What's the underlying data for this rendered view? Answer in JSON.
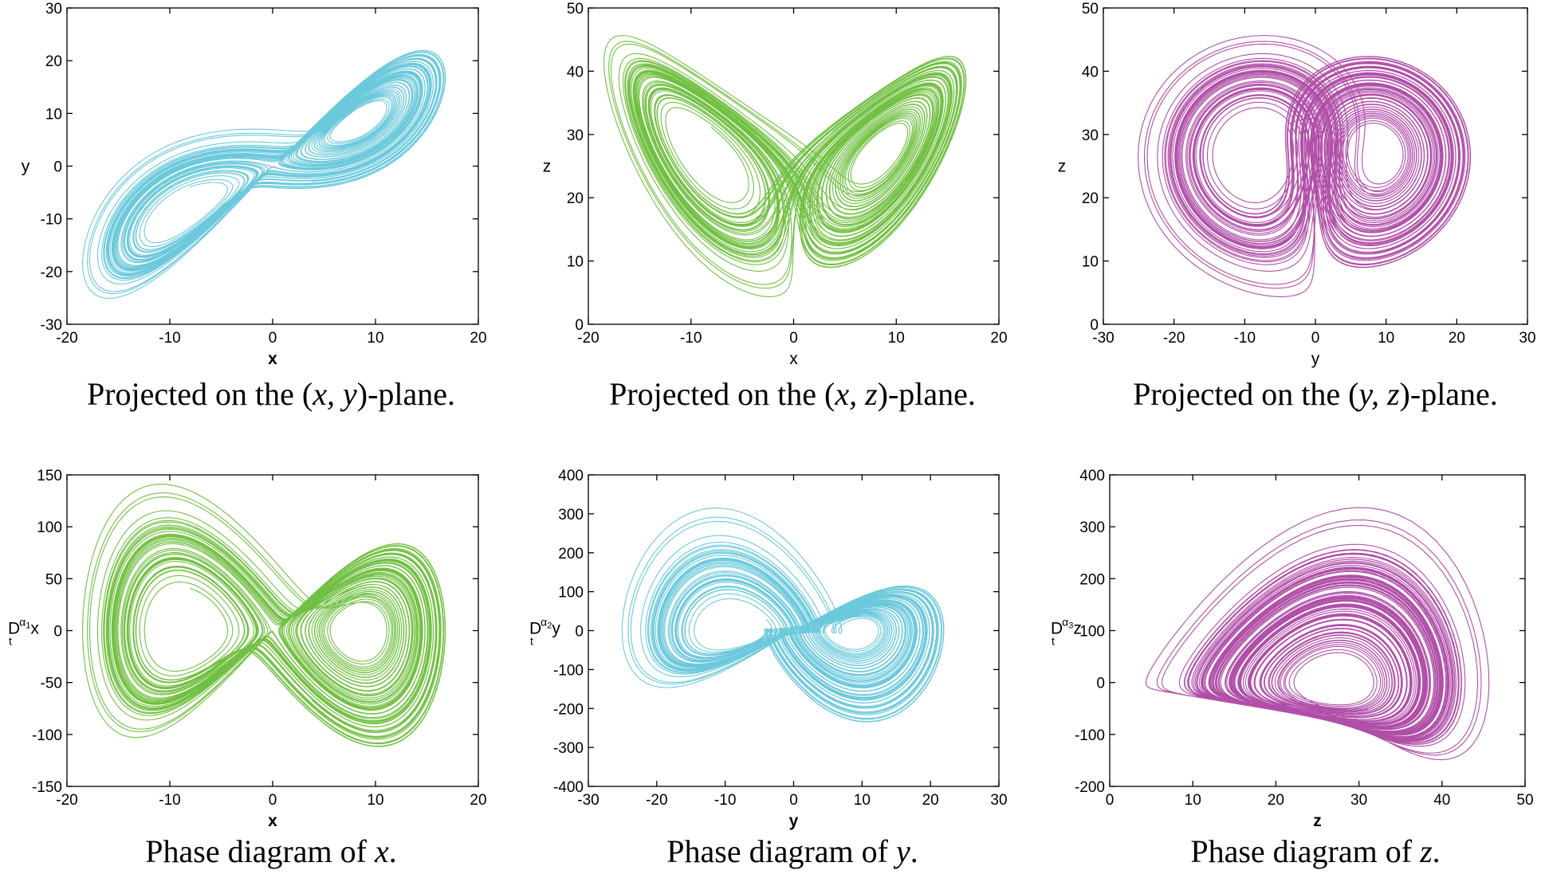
{
  "colors": {
    "cyan": "#6cc9dc",
    "green": "#72c043",
    "magenta": "#b04fa8",
    "axis": "#000000"
  },
  "chart_data": [
    {
      "type": "line",
      "id": "xy",
      "series": [
        {
          "name": "(x, y) projection",
          "x_var": "x",
          "y_var": "y",
          "color": "#6cc9dc"
        }
      ],
      "xlabel": "x",
      "xlabel_bold": true,
      "ylabel": "y",
      "xlim": [
        -20,
        20
      ],
      "ylim": [
        -30,
        30
      ],
      "xticks": [
        "-20",
        "-10",
        "0",
        "10",
        "20"
      ],
      "yticks": [
        "-30",
        "-20",
        "-10",
        "0",
        "10",
        "20",
        "30"
      ],
      "caption": {
        "before": "Projected on the (",
        "vars": "x, y",
        "after": ")-plane."
      }
    },
    {
      "type": "line",
      "id": "xz",
      "series": [
        {
          "name": "(x, z) projection",
          "x_var": "x",
          "y_var": "z",
          "color": "#72c043"
        }
      ],
      "xlabel": "x",
      "xlabel_bold": false,
      "ylabel": "z",
      "xlim": [
        -20,
        20
      ],
      "ylim": [
        0,
        50
      ],
      "xticks": [
        "-20",
        "-10",
        "0",
        "10",
        "20"
      ],
      "yticks": [
        "0",
        "10",
        "20",
        "30",
        "40",
        "50"
      ],
      "caption": {
        "before": "Projected on the (",
        "vars": "x, z",
        "after": ")-plane."
      }
    },
    {
      "type": "line",
      "id": "yz",
      "series": [
        {
          "name": "(y, z) projection",
          "x_var": "y",
          "y_var": "z",
          "color": "#b04fa8"
        }
      ],
      "xlabel": "y",
      "xlabel_bold": false,
      "ylabel": "z",
      "xlim": [
        -30,
        30
      ],
      "ylim": [
        0,
        50
      ],
      "xticks": [
        "-30",
        "-20",
        "-10",
        "0",
        "10",
        "20",
        "30"
      ],
      "yticks": [
        "0",
        "10",
        "20",
        "30",
        "40",
        "50"
      ],
      "caption": {
        "before": "Projected on the (",
        "vars": "y, z",
        "after": ")-plane."
      }
    },
    {
      "type": "line",
      "id": "phase_x",
      "series": [
        {
          "name": "phase x",
          "x_var": "x",
          "y_var": "dx",
          "color": "#72c043"
        }
      ],
      "xlabel": "x",
      "xlabel_bold": true,
      "ylabel": {
        "D": "D",
        "t": "t",
        "alpha": "α",
        "idx": "1",
        "var": "x"
      },
      "xlim": [
        -20,
        20
      ],
      "ylim": [
        -150,
        150
      ],
      "xticks": [
        "-20",
        "-10",
        "0",
        "10",
        "20"
      ],
      "yticks": [
        "-150",
        "-100",
        "-50",
        "0",
        "50",
        "100",
        "150"
      ],
      "caption": {
        "before": "Phase diagram of ",
        "vars": "x",
        "after": "."
      }
    },
    {
      "type": "line",
      "id": "phase_y",
      "series": [
        {
          "name": "phase y",
          "x_var": "y",
          "y_var": "dy",
          "color": "#6cc9dc"
        }
      ],
      "xlabel": "y",
      "xlabel_bold": true,
      "ylabel": {
        "D": "D",
        "t": "t",
        "alpha": "α",
        "idx": "2",
        "var": "y"
      },
      "xlim": [
        -30,
        30
      ],
      "ylim": [
        -400,
        400
      ],
      "xticks": [
        "-30",
        "-20",
        "-10",
        "0",
        "10",
        "20",
        "30"
      ],
      "yticks": [
        "-400",
        "-300",
        "-200",
        "-100",
        "0",
        "100",
        "200",
        "300",
        "400"
      ],
      "caption": {
        "before": "Phase diagram of ",
        "vars": "y",
        "after": "."
      }
    },
    {
      "type": "line",
      "id": "phase_z",
      "series": [
        {
          "name": "phase z",
          "x_var": "z",
          "y_var": "dz",
          "color": "#b04fa8"
        }
      ],
      "xlabel": "z",
      "xlabel_bold": true,
      "ylabel": {
        "D": "D",
        "t": "t",
        "alpha": "α",
        "idx": "3",
        "var": "z"
      },
      "xlim": [
        0,
        50
      ],
      "ylim": [
        -200,
        400
      ],
      "xticks": [
        "0",
        "10",
        "20",
        "30",
        "40",
        "50"
      ],
      "yticks": [
        "-200",
        "-100",
        "0",
        "100",
        "200",
        "300",
        "400"
      ],
      "caption": {
        "before": "Phase diagram of ",
        "vars": "z",
        "after": "."
      }
    }
  ]
}
